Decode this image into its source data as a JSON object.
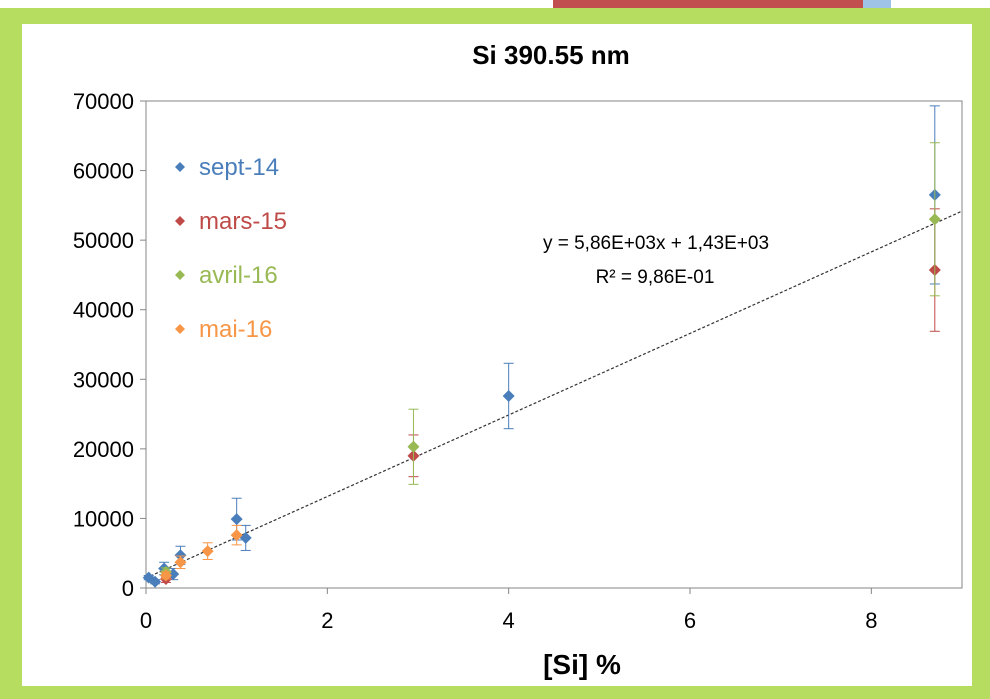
{
  "chart_data": {
    "type": "scatter",
    "title": "Si 390.55 nm",
    "xlabel": "[Si] %",
    "ylabel": "",
    "xlim": [
      0,
      9
    ],
    "ylim": [
      0,
      70000
    ],
    "xticks": [
      "0",
      "2",
      "4",
      "6",
      "8"
    ],
    "yticks": [
      "0",
      "10000",
      "20000",
      "30000",
      "40000",
      "50000",
      "60000",
      "70000"
    ],
    "grid": false,
    "legend_position": "top-left inside",
    "series": [
      {
        "name": "sept-14",
        "color": "#4a7ebb",
        "points": [
          {
            "x": 0.03,
            "y": 1500,
            "err": 300
          },
          {
            "x": 0.1,
            "y": 900,
            "err": 300
          },
          {
            "x": 0.2,
            "y": 2800,
            "err": 900
          },
          {
            "x": 0.3,
            "y": 2000,
            "err": 800
          },
          {
            "x": 0.38,
            "y": 4700,
            "err": 1300
          },
          {
            "x": 1.0,
            "y": 9900,
            "err": 3000
          },
          {
            "x": 1.1,
            "y": 7200,
            "err": 1800
          },
          {
            "x": 4.0,
            "y": 27600,
            "err": 4700
          },
          {
            "x": 8.7,
            "y": 56500,
            "err": 12800
          }
        ]
      },
      {
        "name": "mars-15",
        "color": "#be4b48",
        "points": [
          {
            "x": 0.22,
            "y": 1300,
            "err": 500
          },
          {
            "x": 2.95,
            "y": 19000,
            "err": 3000
          },
          {
            "x": 8.7,
            "y": 45700,
            "err": 8800
          }
        ]
      },
      {
        "name": "avril-16",
        "color": "#98b954",
        "points": [
          {
            "x": 0.22,
            "y": 2300,
            "err": 600
          },
          {
            "x": 2.95,
            "y": 20300,
            "err": 5400
          },
          {
            "x": 8.7,
            "y": 53000,
            "err": 11000
          }
        ]
      },
      {
        "name": "mai-16",
        "color": "#f79646",
        "points": [
          {
            "x": 0.22,
            "y": 1800,
            "err": 500
          },
          {
            "x": 0.38,
            "y": 3700,
            "err": 900
          },
          {
            "x": 0.68,
            "y": 5300,
            "err": 1200
          },
          {
            "x": 1.0,
            "y": 7600,
            "err": 1400
          }
        ]
      }
    ],
    "trendline": {
      "slope": 5860,
      "intercept": 1430,
      "x_range": [
        0.05,
        9
      ],
      "color": "#333333",
      "style": "dotted"
    },
    "annotations": [
      "y = 5,86E+03x + 1,43E+03",
      "R² = 9,86E-01"
    ]
  }
}
